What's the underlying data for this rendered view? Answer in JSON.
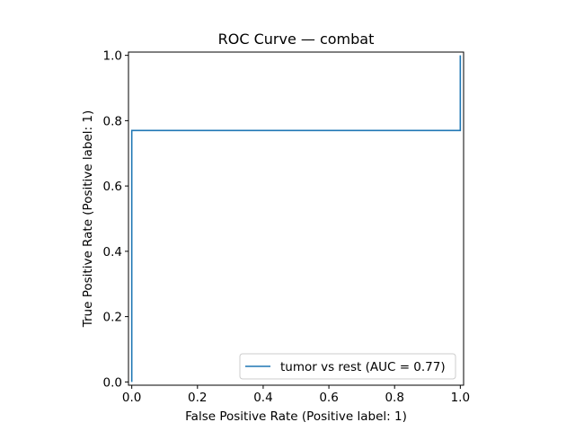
{
  "chart_data": {
    "type": "line",
    "title": "ROC Curve — combat",
    "xlabel": "False Positive Rate (Positive label: 1)",
    "ylabel": "True Positive Rate (Positive label: 1)",
    "xlim": [
      -0.01,
      1.01
    ],
    "ylim": [
      -0.01,
      1.01
    ],
    "xticks": [
      0.0,
      0.2,
      0.4,
      0.6,
      0.8,
      1.0
    ],
    "yticks": [
      0.0,
      0.2,
      0.4,
      0.6,
      0.8,
      1.0
    ],
    "xtick_labels": [
      "0.0",
      "0.2",
      "0.4",
      "0.6",
      "0.8",
      "1.0"
    ],
    "ytick_labels": [
      "0.0",
      "0.2",
      "0.4",
      "0.6",
      "0.8",
      "1.0"
    ],
    "grid": false,
    "legend_position": "lower-right",
    "series": [
      {
        "name": "tumor vs rest (AUC = 0.77)",
        "color": "#1f77b4",
        "x": [
          0.0,
          0.0,
          0.0,
          1.0,
          1.0
        ],
        "y": [
          0.0,
          0.0,
          0.77,
          0.77,
          1.0
        ]
      }
    ]
  }
}
